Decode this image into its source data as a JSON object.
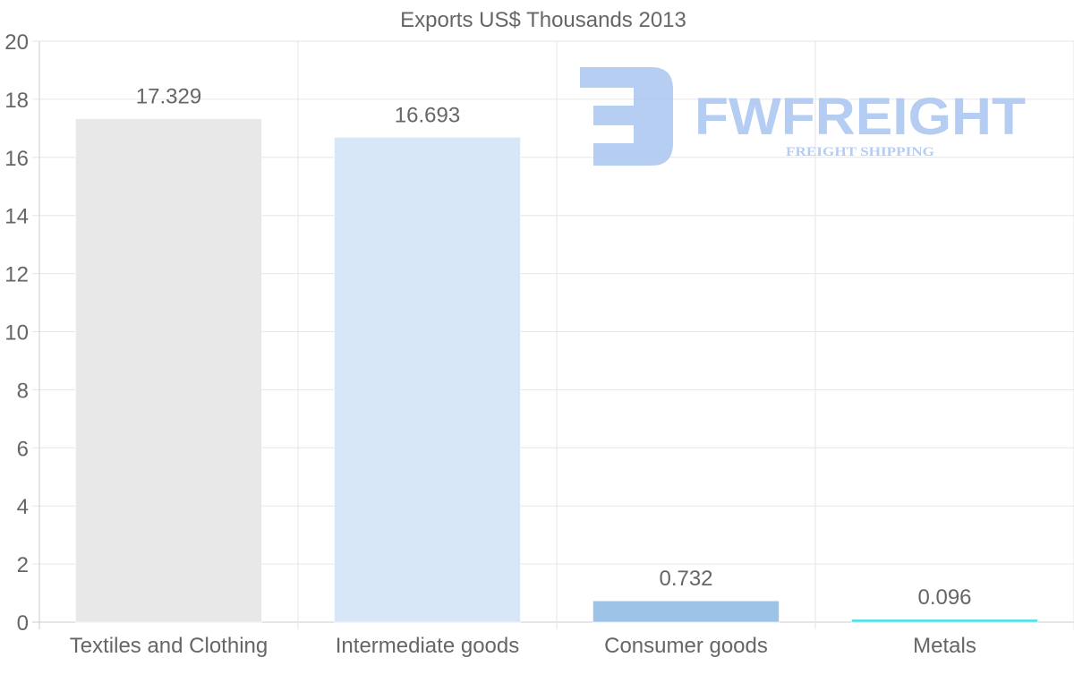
{
  "chart_data": {
    "type": "bar",
    "title": "Exports US$ Thousands 2013",
    "categories": [
      "Textiles and Clothing",
      "Intermediate goods",
      "Consumer goods",
      "Metals"
    ],
    "values": [
      17.329,
      16.693,
      0.732,
      0.096
    ],
    "value_labels": [
      "17.329",
      "16.693",
      "0.732",
      "0.096"
    ],
    "colors": [
      "#e8e8e8",
      "#d7e7f8",
      "#9dc3e6",
      "#3ee0ea"
    ],
    "ylim": [
      0,
      20
    ],
    "yticks": [
      0,
      2,
      4,
      6,
      8,
      10,
      12,
      14,
      16,
      18,
      20
    ],
    "xlabel": "",
    "ylabel": "",
    "grid": true,
    "legend": "none"
  },
  "watermark": {
    "brand": "FWFREIGHT",
    "tagline": "FREIGHT SHIPPING",
    "color": "#a9c5f0"
  }
}
